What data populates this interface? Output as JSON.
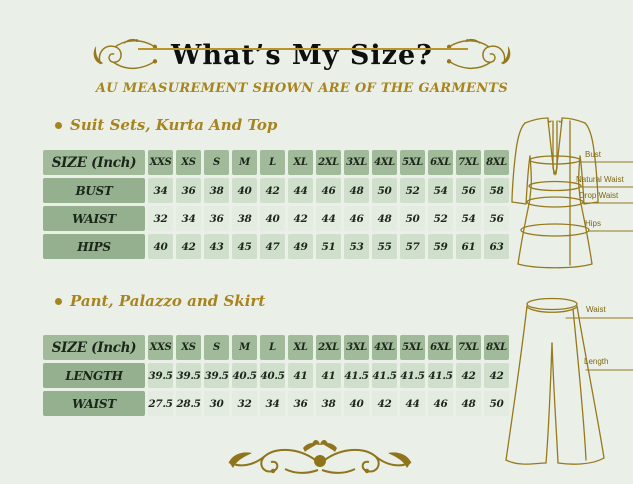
{
  "page": {
    "title": "What’s My Size?",
    "subtitle": "AU MEASUREMENT SHOWN ARE OF THE GARMENTS"
  },
  "colors": {
    "background": "#eaf0e8",
    "gold_text": "#a8841f",
    "gold_ornament": "#8f741b",
    "gold_line": "#b8962a",
    "header_cell_green": "#a0ba9a",
    "label_cell_green": "#94b08e",
    "row_light_green": "#cfdfcc",
    "row_lighter_green": "#e4ebe1",
    "cell_text": "#1b261b",
    "title_text": "#0f0f0f"
  },
  "sections": [
    {
      "title": "Suit Sets, Kurta And Top",
      "table": {
        "header": [
          "SIZE (Inch)",
          "XXS",
          "XS",
          "S",
          "M",
          "L",
          "XL",
          "2XL",
          "3XL",
          "4XL",
          "5XL",
          "6XL",
          "7XL",
          "8XL"
        ],
        "rows": [
          {
            "label": "BUST",
            "values": [
              "34",
              "36",
              "38",
              "40",
              "42",
              "44",
              "46",
              "48",
              "50",
              "52",
              "54",
              "56",
              "58"
            ]
          },
          {
            "label": "WAIST",
            "values": [
              "32",
              "34",
              "36",
              "38",
              "40",
              "42",
              "44",
              "46",
              "48",
              "50",
              "52",
              "54",
              "56"
            ]
          },
          {
            "label": "HIPS",
            "values": [
              "40",
              "42",
              "43",
              "45",
              "47",
              "49",
              "51",
              "53",
              "55",
              "57",
              "59",
              "61",
              "63"
            ]
          }
        ]
      }
    },
    {
      "title": "Pant, Palazzo and Skirt",
      "table": {
        "header": [
          "SIZE (Inch)",
          "XXS",
          "XS",
          "S",
          "M",
          "L",
          "XL",
          "2XL",
          "3XL",
          "4XL",
          "5XL",
          "6XL",
          "7XL",
          "8XL"
        ],
        "rows": [
          {
            "label": "LENGTH",
            "values": [
              "39.5",
              "39.5",
              "39.5",
              "40.5",
              "40.5",
              "41",
              "41",
              "41.5",
              "41.5",
              "41.5",
              "41.5",
              "42",
              "42"
            ]
          },
          {
            "label": "WAIST",
            "values": [
              "27.5",
              "28.5",
              "30",
              "32",
              "34",
              "36",
              "38",
              "40",
              "42",
              "44",
              "46",
              "48",
              "50"
            ]
          }
        ]
      }
    }
  ],
  "kurta_diagram": {
    "labels": [
      "Bust",
      "Natural Waist",
      "Drop Waist",
      "Hips"
    ]
  },
  "pants_diagram": {
    "labels": [
      "Waist",
      "Length"
    ]
  }
}
